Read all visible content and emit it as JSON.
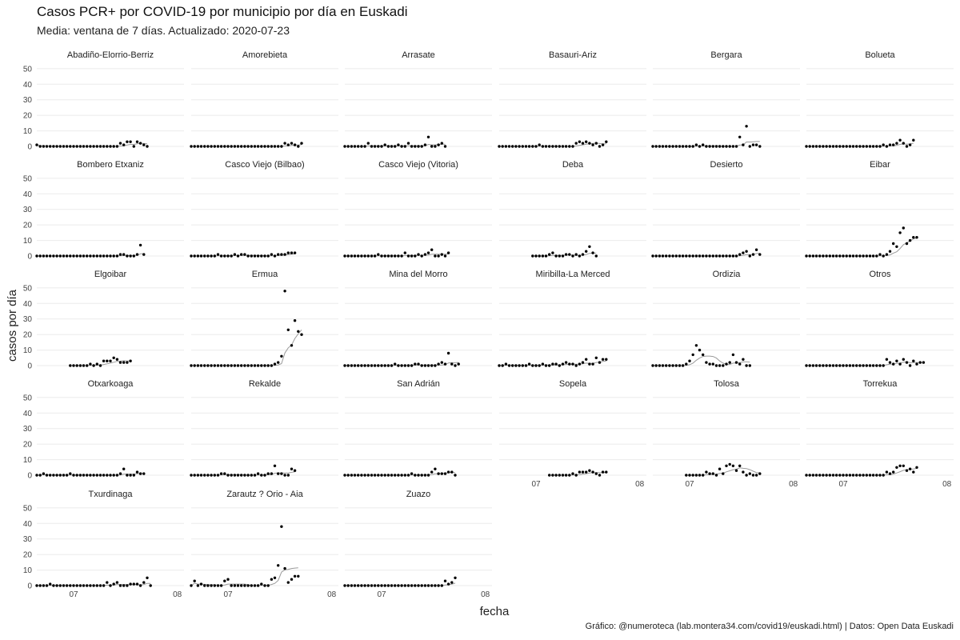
{
  "chart_data": {
    "type": "scatter",
    "title": "Casos PCR+ por COVID-19 por municipio por día en Euskadi",
    "subtitle": "Media: ventana de 7 días. Actualizado: 2020-07-23",
    "xlabel": "fecha",
    "ylabel": "casos por día",
    "caption": "Gráfico: @numeroteca (lab.montera34.com/covid19/euskadi.html) | Datos: Open Data Euskadi",
    "y_ticks": [
      "0",
      "10",
      "20",
      "30",
      "40",
      "50"
    ],
    "ylim": [
      0,
      52
    ],
    "x_ticks": [
      "07",
      "08"
    ],
    "x_domain": [
      "2020-06-20",
      "2020-08-03"
    ],
    "x_tick_dates": [
      "2020-07-01",
      "2020-08-01"
    ],
    "grid": true,
    "smooth_line": "7-day rolling mean",
    "date_start": "2020-06-20",
    "facets": [
      {
        "name": "Abadiño-Elorrio-Berriz",
        "start": "2020-06-20",
        "values": [
          1,
          0,
          0,
          0,
          0,
          0,
          0,
          0,
          0,
          0,
          0,
          0,
          0,
          0,
          0,
          0,
          0,
          0,
          0,
          0,
          0,
          0,
          0,
          0,
          0,
          2,
          1,
          3,
          3,
          0,
          3,
          2,
          1,
          0
        ]
      },
      {
        "name": "Amorebieta",
        "start": "2020-06-20",
        "values": [
          0,
          0,
          0,
          0,
          0,
          0,
          0,
          0,
          0,
          0,
          0,
          0,
          0,
          0,
          0,
          0,
          0,
          0,
          0,
          0,
          0,
          0,
          0,
          0,
          0,
          0,
          0,
          0,
          2,
          1,
          2,
          1,
          0,
          2
        ]
      },
      {
        "name": "Arrasate",
        "start": "2020-06-20",
        "values": [
          0,
          0,
          0,
          0,
          0,
          0,
          0,
          2,
          0,
          0,
          0,
          0,
          1,
          0,
          0,
          0,
          1,
          0,
          0,
          2,
          0,
          0,
          0,
          0,
          1,
          6,
          0,
          0,
          1,
          2,
          0
        ]
      },
      {
        "name": "Basauri-Ariz",
        "start": "2020-06-20",
        "values": [
          0,
          0,
          0,
          0,
          0,
          0,
          0,
          0,
          0,
          0,
          0,
          0,
          1,
          0,
          0,
          0,
          0,
          0,
          0,
          0,
          0,
          0,
          0,
          2,
          3,
          2,
          3,
          2,
          1,
          2,
          0,
          1,
          3
        ]
      },
      {
        "name": "Bergara",
        "start": "2020-06-20",
        "values": [
          0,
          0,
          0,
          0,
          0,
          0,
          0,
          0,
          0,
          0,
          0,
          0,
          0,
          1,
          0,
          1,
          0,
          0,
          0,
          0,
          0,
          0,
          0,
          0,
          0,
          0,
          6,
          1,
          13,
          0,
          1,
          1,
          0
        ]
      },
      {
        "name": "Bolueta",
        "start": "2020-06-20",
        "values": [
          0,
          0,
          0,
          0,
          0,
          0,
          0,
          0,
          0,
          0,
          0,
          0,
          0,
          0,
          0,
          0,
          0,
          0,
          0,
          0,
          0,
          0,
          0,
          1,
          0,
          1,
          1,
          2,
          4,
          2,
          0,
          1,
          4
        ]
      },
      {
        "name": "Bombero Etxaniz",
        "start": "2020-06-20",
        "values": [
          0,
          0,
          0,
          0,
          0,
          0,
          0,
          0,
          0,
          0,
          0,
          0,
          0,
          0,
          0,
          0,
          0,
          0,
          0,
          0,
          0,
          0,
          0,
          0,
          0,
          1,
          1,
          0,
          0,
          0,
          1,
          7,
          1
        ]
      },
      {
        "name": "Casco Viejo (Bilbao)",
        "start": "2020-06-20",
        "values": [
          0,
          0,
          0,
          0,
          0,
          0,
          0,
          0,
          1,
          0,
          0,
          0,
          0,
          1,
          0,
          1,
          1,
          0,
          0,
          0,
          0,
          0,
          0,
          0,
          1,
          0,
          1,
          1,
          1,
          2,
          2,
          2
        ]
      },
      {
        "name": "Casco Viejo (Vitoria)",
        "start": "2020-06-20",
        "values": [
          0,
          0,
          0,
          0,
          0,
          0,
          0,
          0,
          0,
          0,
          1,
          0,
          0,
          0,
          0,
          0,
          0,
          0,
          2,
          0,
          0,
          0,
          1,
          0,
          1,
          2,
          4,
          0,
          0,
          1,
          0,
          2
        ]
      },
      {
        "name": "Deba",
        "start": "2020-06-30",
        "values": [
          0,
          0,
          0,
          0,
          0,
          1,
          2,
          0,
          0,
          0,
          1,
          1,
          0,
          1,
          0,
          1,
          3,
          6,
          2,
          0
        ]
      },
      {
        "name": "Desierto",
        "start": "2020-06-20",
        "values": [
          0,
          0,
          0,
          0,
          0,
          0,
          0,
          0,
          0,
          0,
          0,
          0,
          0,
          0,
          0,
          0,
          0,
          0,
          0,
          0,
          0,
          0,
          0,
          0,
          0,
          0,
          1,
          2,
          3,
          0,
          1,
          4,
          1
        ]
      },
      {
        "name": "Eibar",
        "start": "2020-06-20",
        "values": [
          0,
          0,
          0,
          0,
          0,
          0,
          0,
          0,
          0,
          0,
          0,
          0,
          0,
          0,
          0,
          0,
          0,
          0,
          0,
          0,
          0,
          0,
          1,
          0,
          1,
          3,
          8,
          6,
          15,
          18,
          8,
          10,
          12,
          12
        ]
      },
      {
        "name": "Elgoibar",
        "start": "2020-06-30",
        "values": [
          0,
          0,
          0,
          0,
          0,
          0,
          1,
          0,
          1,
          0,
          3,
          3,
          3,
          5,
          4,
          2,
          2,
          2,
          3
        ]
      },
      {
        "name": "Ermua",
        "start": "2020-06-20",
        "values": [
          0,
          0,
          0,
          0,
          0,
          0,
          0,
          0,
          0,
          0,
          0,
          0,
          0,
          0,
          0,
          0,
          0,
          0,
          0,
          0,
          0,
          0,
          0,
          0,
          0,
          1,
          2,
          6,
          48,
          23,
          13,
          29,
          22,
          20
        ]
      },
      {
        "name": "Mina del Morro",
        "start": "2020-06-20",
        "values": [
          0,
          0,
          0,
          0,
          0,
          0,
          0,
          0,
          0,
          0,
          0,
          0,
          0,
          0,
          0,
          1,
          0,
          0,
          0,
          0,
          0,
          1,
          1,
          0,
          0,
          0,
          0,
          0,
          1,
          2,
          1,
          8,
          1,
          0,
          1
        ]
      },
      {
        "name": "Miribilla-La Merced",
        "start": "2020-06-20",
        "values": [
          0,
          0,
          1,
          0,
          0,
          0,
          0,
          0,
          0,
          1,
          0,
          0,
          0,
          1,
          0,
          0,
          1,
          1,
          0,
          1,
          2,
          1,
          1,
          0,
          1,
          2,
          4,
          1,
          1,
          5,
          2,
          4,
          4
        ]
      },
      {
        "name": "Ordizia",
        "start": "2020-06-20",
        "values": [
          0,
          0,
          0,
          0,
          0,
          0,
          0,
          0,
          0,
          0,
          1,
          3,
          7,
          13,
          10,
          7,
          2,
          1,
          1,
          0,
          0,
          0,
          1,
          2,
          7,
          2,
          1,
          4,
          0,
          0
        ]
      },
      {
        "name": "Otros",
        "start": "2020-06-20",
        "values": [
          0,
          0,
          0,
          0,
          0,
          0,
          0,
          0,
          0,
          0,
          0,
          0,
          0,
          0,
          0,
          0,
          0,
          0,
          0,
          0,
          0,
          0,
          0,
          0,
          4,
          2,
          1,
          3,
          1,
          4,
          2,
          0,
          3,
          1,
          2,
          2
        ]
      },
      {
        "name": "Otxarkoaga",
        "start": "2020-06-20",
        "values": [
          0,
          0,
          1,
          0,
          0,
          0,
          0,
          0,
          0,
          0,
          1,
          0,
          0,
          0,
          0,
          0,
          0,
          0,
          0,
          0,
          0,
          0,
          0,
          0,
          0,
          1,
          4,
          0,
          0,
          0,
          2,
          1,
          1
        ]
      },
      {
        "name": "Rekalde",
        "start": "2020-06-20",
        "values": [
          0,
          0,
          0,
          0,
          0,
          0,
          0,
          0,
          0,
          1,
          1,
          0,
          0,
          0,
          0,
          0,
          0,
          0,
          0,
          0,
          1,
          0,
          0,
          1,
          1,
          6,
          1,
          1,
          0,
          0,
          4,
          3
        ]
      },
      {
        "name": "San Adrián",
        "start": "2020-06-20",
        "values": [
          0,
          0,
          0,
          0,
          0,
          0,
          0,
          0,
          0,
          0,
          0,
          0,
          0,
          0,
          0,
          0,
          0,
          0,
          0,
          0,
          1,
          0,
          0,
          0,
          0,
          0,
          2,
          4,
          1,
          1,
          1,
          2,
          2,
          0
        ]
      },
      {
        "name": "Sopela",
        "start": "2020-07-05",
        "values": [
          0,
          0,
          0,
          0,
          0,
          0,
          0,
          1,
          0,
          2,
          2,
          2,
          3,
          2,
          1,
          0,
          2,
          2
        ]
      },
      {
        "name": "Tolosa",
        "start": "2020-06-30",
        "values": [
          0,
          0,
          0,
          0,
          0,
          0,
          2,
          1,
          1,
          0,
          4,
          1,
          6,
          7,
          6,
          3,
          6,
          2,
          0,
          1,
          0,
          0,
          1
        ]
      },
      {
        "name": "Torrekua",
        "start": "2020-06-20",
        "values": [
          0,
          0,
          0,
          0,
          0,
          0,
          0,
          0,
          0,
          0,
          0,
          0,
          0,
          0,
          0,
          0,
          0,
          0,
          0,
          0,
          0,
          0,
          0,
          0,
          2,
          1,
          2,
          5,
          6,
          6,
          3,
          4,
          2,
          5
        ]
      },
      {
        "name": "Txurdinaga",
        "start": "2020-06-20",
        "values": [
          0,
          0,
          0,
          0,
          1,
          0,
          0,
          0,
          0,
          0,
          0,
          0,
          0,
          0,
          0,
          0,
          0,
          0,
          0,
          0,
          0,
          2,
          0,
          1,
          2,
          0,
          0,
          0,
          1,
          1,
          1,
          0,
          2,
          5,
          0
        ]
      },
      {
        "name": "Zarautz ? Orio - Aia",
        "start": "2020-06-20",
        "values": [
          0,
          3,
          0,
          1,
          0,
          0,
          0,
          0,
          0,
          0,
          3,
          4,
          0,
          0,
          0,
          0,
          0,
          0,
          0,
          0,
          0,
          1,
          0,
          0,
          4,
          5,
          13,
          38,
          11,
          2,
          4,
          6,
          6
        ]
      },
      {
        "name": "Zuazo",
        "start": "2020-06-20",
        "values": [
          0,
          0,
          0,
          0,
          0,
          0,
          0,
          0,
          0,
          0,
          0,
          0,
          0,
          0,
          0,
          0,
          0,
          0,
          0,
          0,
          0,
          0,
          0,
          0,
          0,
          0,
          0,
          0,
          0,
          0,
          3,
          1,
          2,
          5
        ]
      }
    ]
  }
}
